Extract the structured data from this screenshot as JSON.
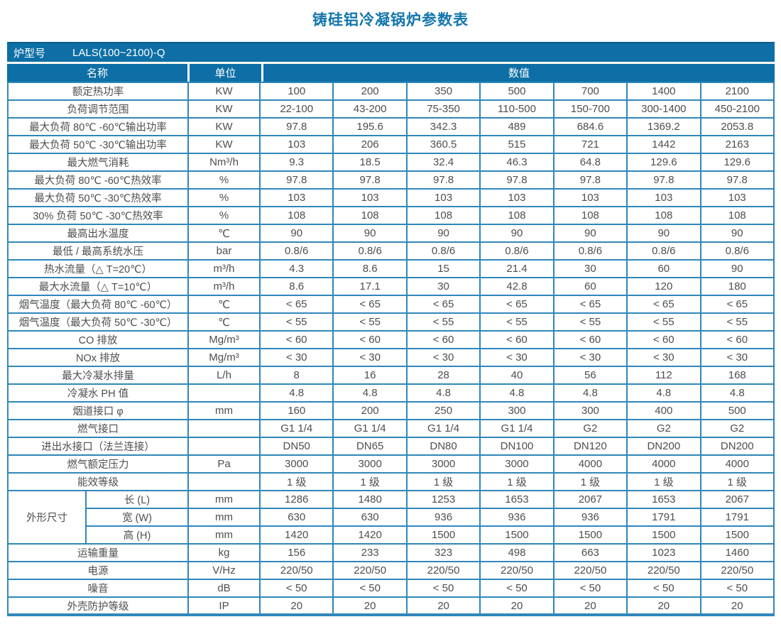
{
  "title": "铸硅铝冷凝锅炉参数表",
  "model_bar": {
    "label": "炉型号",
    "value": "LALS(100~2100)-Q"
  },
  "columns": {
    "name": "名称",
    "unit": "单位",
    "value": "数值"
  },
  "dimension_group": "外形尺寸",
  "colors": {
    "bar": "#0d6fa5",
    "border": "#2f87ba",
    "title": "#1376ad",
    "text": "#4d4e50"
  },
  "rows": [
    {
      "name": "额定热功率",
      "unit": "KW",
      "values": [
        "100",
        "200",
        "350",
        "500",
        "700",
        "1400",
        "2100"
      ]
    },
    {
      "name": "负荷调节范围",
      "unit": "KW",
      "values": [
        "22-100",
        "43-200",
        "75-350",
        "110-500",
        "150-700",
        "300-1400",
        "450-2100"
      ]
    },
    {
      "name": "最大负荷 80℃ -60℃输出功率",
      "unit": "KW",
      "values": [
        "97.8",
        "195.6",
        "342.3",
        "489",
        "684.6",
        "1369.2",
        "2053.8"
      ]
    },
    {
      "name": "最大负荷 50℃ -30℃输出功率",
      "unit": "KW",
      "values": [
        "103",
        "206",
        "360.5",
        "515",
        "721",
        "1442",
        "2163"
      ]
    },
    {
      "name": "最大燃气消耗",
      "unit": "Nm³/h",
      "values": [
        "9.3",
        "18.5",
        "32.4",
        "46.3",
        "64.8",
        "129.6",
        "129.6"
      ]
    },
    {
      "name": "最大负荷 80℃ -60℃热效率",
      "unit": "%",
      "values": [
        "97.8",
        "97.8",
        "97.8",
        "97.8",
        "97.8",
        "97.8",
        "97.8"
      ]
    },
    {
      "name": "最大负荷 50℃ -30℃热效率",
      "unit": "%",
      "values": [
        "103",
        "103",
        "103",
        "103",
        "103",
        "103",
        "103"
      ]
    },
    {
      "name": "30% 负荷 50℃ -30℃热效率",
      "unit": "%",
      "values": [
        "108",
        "108",
        "108",
        "108",
        "108",
        "108",
        "108"
      ]
    },
    {
      "name": "最高出水温度",
      "unit": "℃",
      "values": [
        "90",
        "90",
        "90",
        "90",
        "90",
        "90",
        "90"
      ]
    },
    {
      "name": "最低 / 最高系统水压",
      "unit": "bar",
      "values": [
        "0.8/6",
        "0.8/6",
        "0.8/6",
        "0.8/6",
        "0.8/6",
        "0.8/6",
        "0.8/6"
      ]
    },
    {
      "name": "热水流量（△ T=20℃）",
      "unit": "m³/h",
      "values": [
        "4.3",
        "8.6",
        "15",
        "21.4",
        "30",
        "60",
        "90"
      ]
    },
    {
      "name": "最大水流量（△ T=10℃）",
      "unit": "m³/h",
      "values": [
        "8.6",
        "17.1",
        "30",
        "42.8",
        "60",
        "120",
        "180"
      ]
    },
    {
      "name": "烟气温度（最大负荷 80℃ -60℃）",
      "unit": "℃",
      "values": [
        "< 65",
        "< 65",
        "< 65",
        "< 65",
        "< 65",
        "< 65",
        "< 65"
      ]
    },
    {
      "name": "烟气温度（最大负荷 50℃ -30℃）",
      "unit": "℃",
      "values": [
        "< 55",
        "< 55",
        "< 55",
        "< 55",
        "< 55",
        "< 55",
        "< 55"
      ]
    },
    {
      "name": "CO 排放",
      "unit": "Mg/m³",
      "values": [
        "< 60",
        "< 60",
        "< 60",
        "< 60",
        "< 60",
        "< 60",
        "< 60"
      ]
    },
    {
      "name": "NOx 排放",
      "unit": "Mg/m³",
      "values": [
        "< 30",
        "< 30",
        "< 30",
        "< 30",
        "< 30",
        "< 30",
        "< 30"
      ]
    },
    {
      "name": "最大冷凝水排量",
      "unit": "L/h",
      "values": [
        "8",
        "16",
        "28",
        "40",
        "56",
        "112",
        "168"
      ]
    },
    {
      "name": "冷凝水 PH 值",
      "unit": "",
      "values": [
        "4.8",
        "4.8",
        "4.8",
        "4.8",
        "4.8",
        "4.8",
        "4.8"
      ]
    },
    {
      "name": "烟道接口 φ",
      "unit": "mm",
      "values": [
        "160",
        "200",
        "250",
        "300",
        "300",
        "400",
        "500"
      ]
    },
    {
      "name": "燃气接口",
      "unit": "",
      "values": [
        "G1 1/4",
        "G1 1/4",
        "G1 1/4",
        "G1 1/4",
        "G2",
        "G2",
        "G2"
      ]
    },
    {
      "name": "进出水接口（法兰连接）",
      "unit": "",
      "values": [
        "DN50",
        "DN65",
        "DN80",
        "DN100",
        "DN120",
        "DN200",
        "DN200"
      ]
    },
    {
      "name": "燃气额定压力",
      "unit": "Pa",
      "values": [
        "3000",
        "3000",
        "3000",
        "3000",
        "4000",
        "4000",
        "4000"
      ]
    },
    {
      "name": "能效等级",
      "unit": "",
      "values": [
        "1 级",
        "1 级",
        "1 级",
        "1 级",
        "1 级",
        "1 级",
        "1 级"
      ]
    },
    {
      "name": "长 (L)",
      "unit": "mm",
      "group": true,
      "values": [
        "1286",
        "1480",
        "1253",
        "1653",
        "2067",
        "1653",
        "2067"
      ]
    },
    {
      "name": "宽 (W)",
      "unit": "mm",
      "group": true,
      "values": [
        "630",
        "630",
        "936",
        "936",
        "936",
        "1791",
        "1791"
      ]
    },
    {
      "name": "高 (H)",
      "unit": "mm",
      "group": true,
      "values": [
        "1420",
        "1420",
        "1500",
        "1500",
        "1500",
        "1500",
        "1500"
      ]
    },
    {
      "name": "运输重量",
      "unit": "kg",
      "values": [
        "156",
        "233",
        "323",
        "498",
        "663",
        "1023",
        "1460"
      ]
    },
    {
      "name": "电源",
      "unit": "V/Hz",
      "values": [
        "220/50",
        "220/50",
        "220/50",
        "220/50",
        "220/50",
        "220/50",
        "220/50"
      ]
    },
    {
      "name": "噪音",
      "unit": "dB",
      "values": [
        "< 50",
        "< 50",
        "< 50",
        "< 50",
        "< 50",
        "< 50",
        "< 50"
      ]
    },
    {
      "name": "外壳防护等级",
      "unit": "IP",
      "values": [
        "20",
        "20",
        "20",
        "20",
        "20",
        "20",
        "20"
      ]
    }
  ]
}
